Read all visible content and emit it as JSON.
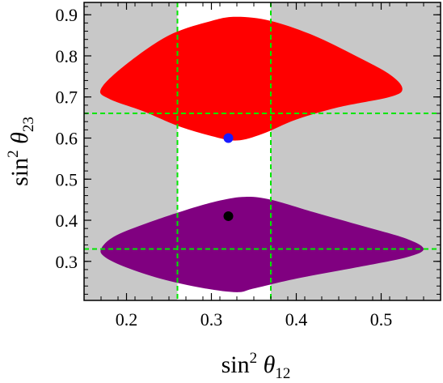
{
  "chart_data": {
    "type": "scatter",
    "x": {
      "label_base": "sin",
      "label_sup": "2",
      "label_var": "θ",
      "label_sub": "12",
      "range": [
        0.15,
        0.57
      ],
      "ticks": [
        0.2,
        0.3,
        0.4,
        0.5
      ],
      "tick_labels": [
        "0.2",
        "0.3",
        "0.4",
        "0.5"
      ]
    },
    "y": {
      "label_base": "sin",
      "label_sup": "2",
      "label_var": "θ",
      "label_sub": "23",
      "range": [
        0.205,
        0.93
      ],
      "ticks": [
        0.3,
        0.4,
        0.5,
        0.6,
        0.7,
        0.8,
        0.9
      ],
      "tick_labels": [
        "0.3",
        "0.4",
        "0.5",
        "0.6",
        "0.7",
        "0.8",
        "0.9"
      ]
    },
    "background_color": "#c8c8c8",
    "gap_band": {
      "x_range": [
        0.26,
        0.37
      ],
      "color": "#ffffff"
    },
    "regions": [
      {
        "id": "upper",
        "color": "#ff0000",
        "outline": [
          [
            0.17,
            0.72
          ],
          [
            0.2,
            0.78
          ],
          [
            0.25,
            0.85
          ],
          [
            0.3,
            0.885
          ],
          [
            0.33,
            0.895
          ],
          [
            0.37,
            0.885
          ],
          [
            0.42,
            0.85
          ],
          [
            0.47,
            0.8
          ],
          [
            0.51,
            0.755
          ],
          [
            0.525,
            0.72
          ],
          [
            0.51,
            0.7
          ],
          [
            0.45,
            0.675
          ],
          [
            0.4,
            0.645
          ],
          [
            0.36,
            0.61
          ],
          [
            0.33,
            0.594
          ],
          [
            0.3,
            0.605
          ],
          [
            0.26,
            0.63
          ],
          [
            0.22,
            0.665
          ],
          [
            0.18,
            0.695
          ]
        ]
      },
      {
        "id": "lower",
        "color": "#800080",
        "outline": [
          [
            0.17,
            0.33
          ],
          [
            0.185,
            0.36
          ],
          [
            0.22,
            0.39
          ],
          [
            0.27,
            0.425
          ],
          [
            0.31,
            0.448
          ],
          [
            0.34,
            0.457
          ],
          [
            0.37,
            0.45
          ],
          [
            0.42,
            0.42
          ],
          [
            0.48,
            0.385
          ],
          [
            0.53,
            0.355
          ],
          [
            0.55,
            0.33
          ],
          [
            0.53,
            0.31
          ],
          [
            0.47,
            0.285
          ],
          [
            0.4,
            0.258
          ],
          [
            0.35,
            0.234
          ],
          [
            0.33,
            0.225
          ],
          [
            0.29,
            0.235
          ],
          [
            0.24,
            0.258
          ],
          [
            0.2,
            0.285
          ],
          [
            0.175,
            0.31
          ]
        ]
      }
    ],
    "points": [
      {
        "id": "blue-point",
        "x": 0.32,
        "y": 0.6,
        "color": "#1a1aff"
      },
      {
        "id": "black-point",
        "x": 0.32,
        "y": 0.41,
        "color": "#000000"
      }
    ],
    "reference_lines": {
      "color": "#00e600",
      "vertical": [
        0.26,
        0.37
      ],
      "horizontal": [
        0.66,
        0.33
      ]
    }
  }
}
